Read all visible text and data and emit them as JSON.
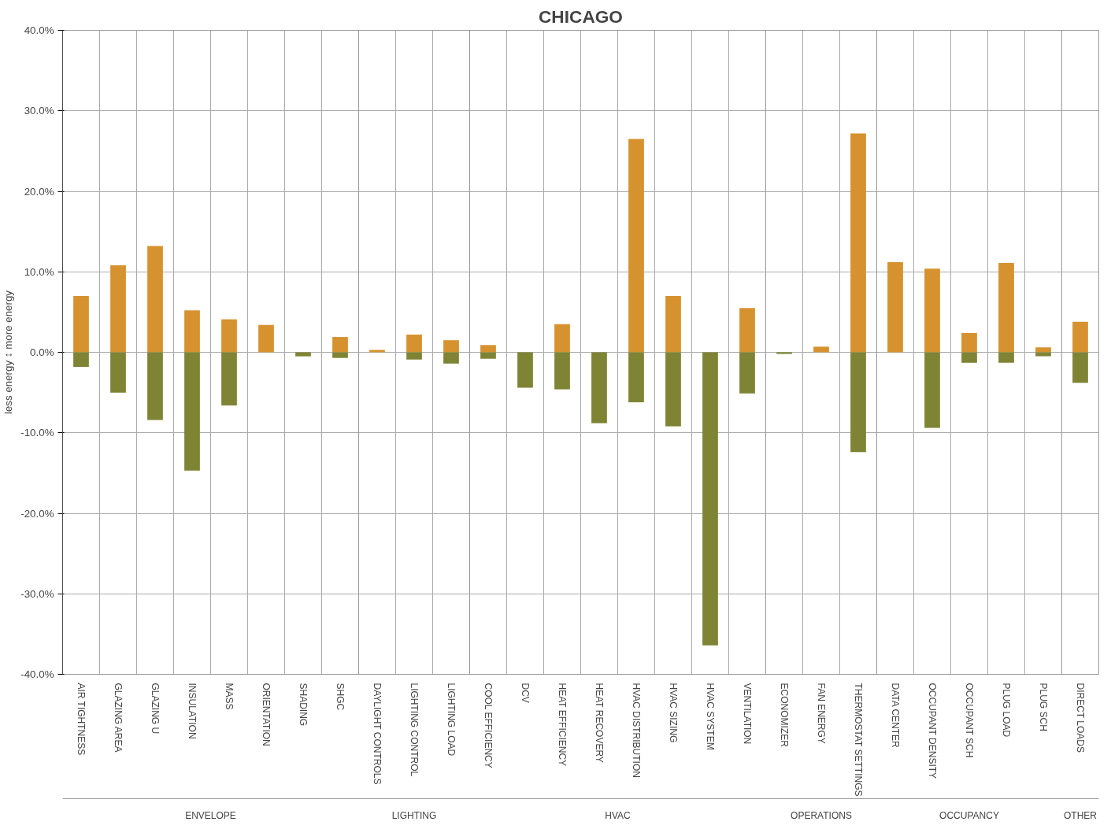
{
  "chart_data": {
    "type": "bar",
    "title": "CHICAGO",
    "ylabel": "less energy ↕ more energy",
    "stacked": true,
    "grid": true,
    "categories": [
      "AIR TIGHTNESS",
      "GLAZING AREA",
      "GLAZING U",
      "INSULATION",
      "MASS",
      "ORIENTATION",
      "SHADING",
      "SHGC",
      "DAYLIGHT CONTROLS",
      "LIGHTING CONTROL",
      "LIGHTING LOAD",
      "COOL EFFICIENCY",
      "DCV",
      "HEAT EFFICIENCY",
      "HEAT RECOVERY",
      "HVAC DISTRIBUTION",
      "HVAC SIZING",
      "HVAC SYSTEM",
      "VENTILATION",
      "ECONOMIZER",
      "FAN ENERGY",
      "THERMOSTAT SETTINGS",
      "DATA CENTER",
      "OCCUPANT DENSITY",
      "OCCUPANT SCH",
      "PLUG LOAD",
      "PLUG SCH",
      "DIRECT LOADS"
    ],
    "series": [
      {
        "color": "#d6922e",
        "values": [
          7.0,
          10.8,
          13.2,
          5.2,
          4.1,
          3.4,
          null,
          1.9,
          0.3,
          2.2,
          1.5,
          0.9,
          null,
          3.5,
          null,
          26.5,
          7.0,
          null,
          5.5,
          null,
          0.7,
          27.2,
          11.2,
          10.4,
          2.4,
          11.1,
          0.6,
          3.8
        ]
      },
      {
        "color": "#7f8435",
        "values": [
          -1.8,
          -5.0,
          -8.4,
          -14.7,
          -6.6,
          null,
          -0.5,
          -0.7,
          null,
          -0.9,
          -1.4,
          -0.8,
          -4.4,
          -4.6,
          -8.8,
          -6.2,
          -9.2,
          -36.4,
          -5.1,
          -0.2,
          null,
          -12.4,
          null,
          -9.4,
          -1.3,
          -1.3,
          -0.5,
          -3.8
        ]
      }
    ],
    "ylim": [
      -40,
      40
    ],
    "yticks": [
      {
        "value": -40,
        "label": "-40.0%"
      },
      {
        "value": -30,
        "label": "-30.0%"
      },
      {
        "value": -20,
        "label": "-20.0%"
      },
      {
        "value": -10,
        "label": "-10.0%"
      },
      {
        "value": 0,
        "label": "0.0%"
      },
      {
        "value": 10,
        "label": "10.0%"
      },
      {
        "value": 20,
        "label": "20.0%"
      },
      {
        "value": 30,
        "label": "30.0%"
      },
      {
        "value": 40,
        "label": "40.0%"
      }
    ],
    "annotations": [
      "ENVELOPE",
      "LIGHTING",
      "HVAC",
      "OPERATIONS",
      "OCCUPANCY",
      "OTHER"
    ]
  }
}
